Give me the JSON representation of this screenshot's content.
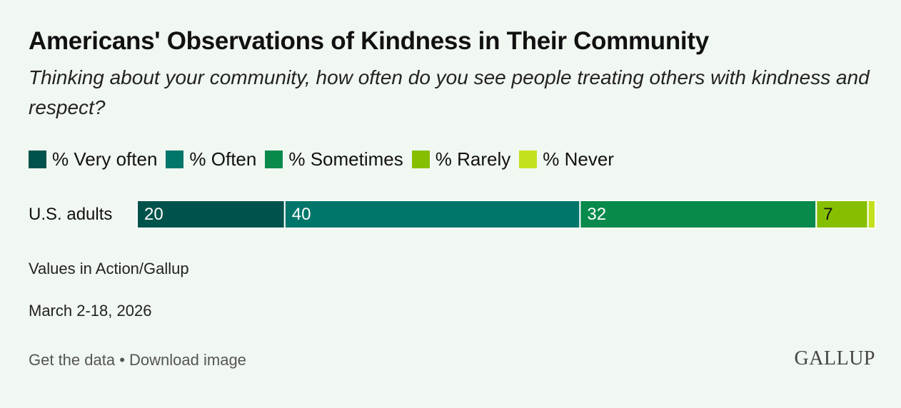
{
  "chart_data": {
    "type": "stacked-bar",
    "orientation": "horizontal",
    "title": "Americans' Observations of Kindness in Their Community",
    "subtitle": "Thinking about your community, how often do you see people treating others with kindness and respect?",
    "categories": [
      "U.S. adults"
    ],
    "series": [
      {
        "name": "% Very often",
        "color": "#00534c",
        "values": [
          20
        ]
      },
      {
        "name": "% Often",
        "color": "#00766a",
        "values": [
          40
        ]
      },
      {
        "name": "% Sometimes",
        "color": "#078a4c",
        "values": [
          32
        ]
      },
      {
        "name": "% Rarely",
        "color": "#86bf00",
        "values": [
          7
        ]
      },
      {
        "name": "% Never",
        "color": "#c4e11d",
        "values": [
          1
        ]
      }
    ],
    "xlim": [
      0,
      100
    ],
    "legend": "top"
  },
  "source": "Values in Action/Gallup",
  "dates": "March 2-18, 2026",
  "footer_links": [
    "Get the data",
    "Download image"
  ],
  "footer_separator": "•",
  "logo": "GALLUP"
}
